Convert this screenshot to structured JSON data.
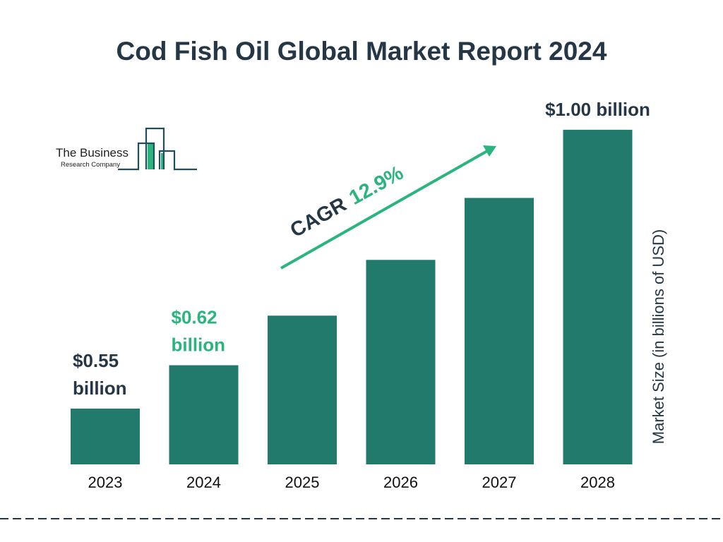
{
  "chart_data": {
    "type": "bar",
    "title": "Cod Fish Oil Global Market Report 2024",
    "categories": [
      "2023",
      "2024",
      "2025",
      "2026",
      "2027",
      "2028"
    ],
    "values": [
      0.55,
      0.62,
      0.7,
      0.79,
      0.89,
      1.0
    ],
    "data_labels": [
      {
        "index": 0,
        "lines": [
          "$0.55",
          "billion"
        ],
        "color": "#253746"
      },
      {
        "index": 1,
        "lines": [
          "$0.62",
          "billion"
        ],
        "color": "#2bb57e"
      },
      {
        "index": 5,
        "lines": [
          "$1.00 billion"
        ],
        "color": "#253746"
      }
    ],
    "xlabel": "",
    "ylabel": "Market Size (in billions of USD)",
    "grid": false,
    "annotation": {
      "prefix": "CAGR",
      "value": "12.9%"
    },
    "colors": {
      "bar": "#217a6b",
      "title": "#253746",
      "accent": "#2bb57e"
    }
  },
  "logo": {
    "line1": "The Business",
    "line2": "Research Company"
  }
}
